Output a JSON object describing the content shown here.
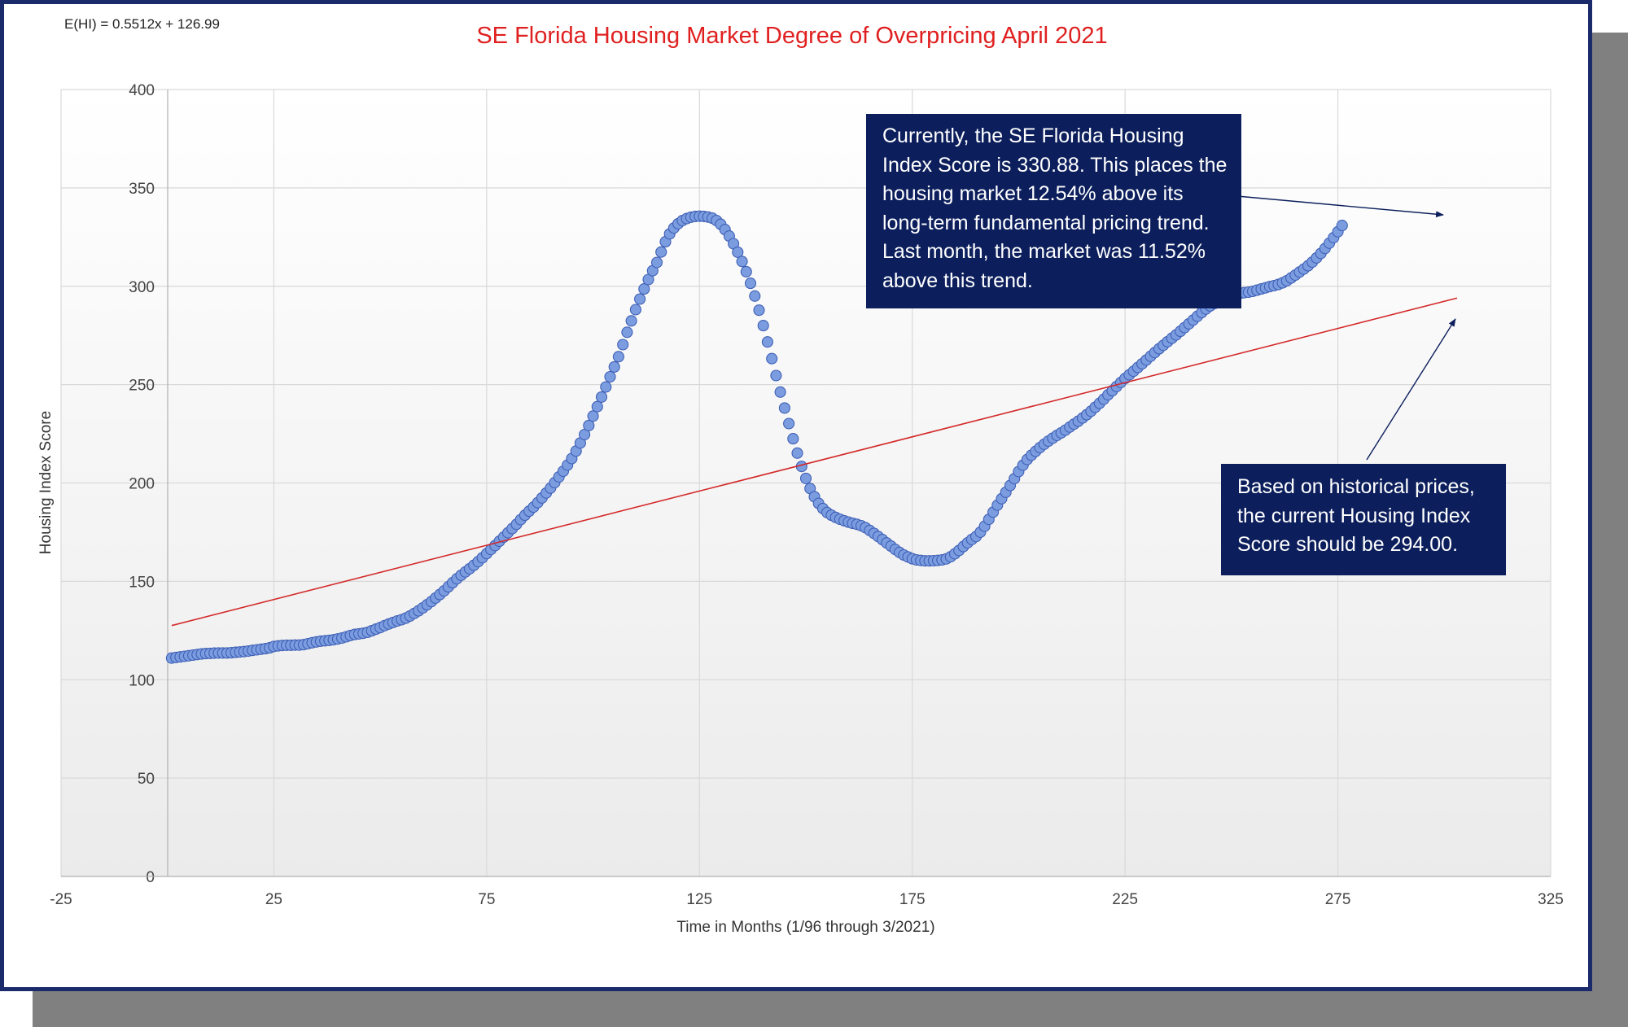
{
  "equation": "E(HI) = 0.5512x + 126.99",
  "callouts": {
    "current": "Currently, the SE Florida Housing Index Score is 330.88.  This places the housing market 12.54% above its long-term fundamental pricing trend. Last month, the market was 11.52% above this trend.",
    "based": "Based on historical prices, the current Housing Index Score should be 294.00."
  },
  "colors": {
    "title": "#e02020",
    "points_fill": "#7b9de0",
    "points_stroke": "#3f5fb5",
    "trend": "#d42a2a",
    "callout_bg": "#0c1f5c",
    "frame": "#1b2a6b"
  },
  "chart_data": {
    "type": "scatter",
    "title": "SE Florida Housing Market Degree of Overpricing April 2021",
    "xlabel": "Time in Months (1/96 through 3/2021)",
    "ylabel": "Housing Index Score",
    "xlim": [
      -25,
      325
    ],
    "ylim": [
      0,
      400
    ],
    "xticks": [
      -25,
      25,
      75,
      125,
      175,
      225,
      275,
      325
    ],
    "yticks": [
      0,
      50,
      100,
      150,
      200,
      250,
      300,
      350,
      400
    ],
    "grid": true,
    "trendline": {
      "slope": 0.5512,
      "intercept": 126.99,
      "x_range": [
        1,
        303
      ]
    },
    "series": [
      {
        "x_start": 1,
        "x_step": 1,
        "values": [
          111.0,
          111.3,
          111.6,
          111.9,
          112.2,
          112.5,
          112.8,
          113.1,
          113.3,
          113.4,
          113.5,
          113.6,
          113.6,
          113.6,
          113.7,
          113.9,
          114.1,
          114.3,
          114.6,
          114.9,
          115.2,
          115.5,
          115.8,
          116.2,
          116.9,
          117.2,
          117.4,
          117.5,
          117.5,
          117.6,
          117.6,
          117.8,
          118.3,
          118.8,
          119.2,
          119.6,
          119.8,
          120.0,
          120.3,
          120.7,
          121.2,
          121.8,
          122.5,
          123.0,
          123.3,
          123.6,
          124.1,
          124.9,
          125.7,
          126.5,
          127.5,
          128.3,
          129.1,
          129.9,
          130.5,
          131.3,
          132.4,
          133.7,
          135.0,
          136.5,
          138.1,
          139.7,
          141.5,
          143.3,
          145.2,
          147.2,
          149.3,
          151.3,
          153.1,
          154.8,
          156.4,
          158.2,
          160.0,
          162.0,
          164.1,
          166.2,
          168.2,
          170.4,
          172.5,
          174.7,
          176.8,
          179.0,
          181.4,
          183.6,
          185.7,
          187.7,
          190.0,
          192.4,
          194.9,
          197.4,
          200.2,
          203.1,
          206.0,
          209.1,
          212.4,
          216.2,
          220.3,
          224.6,
          229.2,
          234.0,
          238.8,
          243.7,
          248.8,
          254.0,
          259.0,
          264.2,
          270.3,
          276.6,
          282.4,
          288.1,
          293.5,
          298.6,
          303.4,
          307.9,
          312.1,
          317.4,
          322.6,
          326.6,
          329.6,
          331.8,
          333.4,
          334.4,
          335.1,
          335.5,
          335.6,
          335.5,
          335.2,
          334.6,
          333.4,
          331.5,
          328.8,
          325.5,
          321.6,
          317.3,
          312.6,
          307.4,
          301.5,
          295.0,
          287.8,
          280.0,
          271.7,
          263.2,
          254.6,
          246.2,
          238.1,
          230.2,
          222.5,
          215.2,
          208.4,
          202.3,
          197.2,
          193.0,
          189.6,
          187.0,
          185.0,
          183.6,
          182.5,
          181.6,
          180.8,
          180.1,
          179.5,
          179.0,
          178.3,
          177.3,
          175.9,
          174.4,
          172.8,
          171.2,
          169.5,
          167.9,
          166.2,
          164.7,
          163.4,
          162.4,
          161.5,
          160.9,
          160.6,
          160.4,
          160.4,
          160.5,
          160.6,
          160.9,
          161.4,
          162.5,
          164.0,
          165.7,
          167.7,
          169.6,
          171.3,
          172.8,
          175.0,
          178.0,
          181.5,
          185.2,
          188.7,
          192.0,
          195.3,
          198.7,
          202.2,
          205.8,
          209.0,
          211.9,
          214.1,
          216.1,
          218.0,
          219.7,
          221.3,
          222.8,
          224.2,
          225.5,
          226.9,
          228.4,
          229.9,
          231.4,
          233.0,
          234.7,
          236.5,
          238.5,
          240.5,
          242.6,
          244.8,
          246.9,
          249.0,
          251.1,
          253.1,
          255.0,
          256.8,
          258.7,
          260.6,
          262.5,
          264.4,
          266.3,
          268.2,
          270.0,
          271.8,
          273.6,
          275.3,
          277.1,
          279.0,
          280.9,
          282.8,
          284.7,
          286.6,
          288.4,
          290.0,
          291.2,
          292.3,
          293.3,
          294.2,
          295.1,
          295.9,
          296.4,
          296.7,
          297.0,
          297.4,
          298.0,
          298.6,
          299.2,
          299.8,
          300.3,
          300.9,
          301.7,
          302.8,
          304.2,
          305.7,
          307.2,
          308.7,
          310.4,
          312.3,
          314.4,
          316.7,
          319.2,
          321.9,
          324.7,
          327.7,
          330.88
        ]
      }
    ]
  }
}
